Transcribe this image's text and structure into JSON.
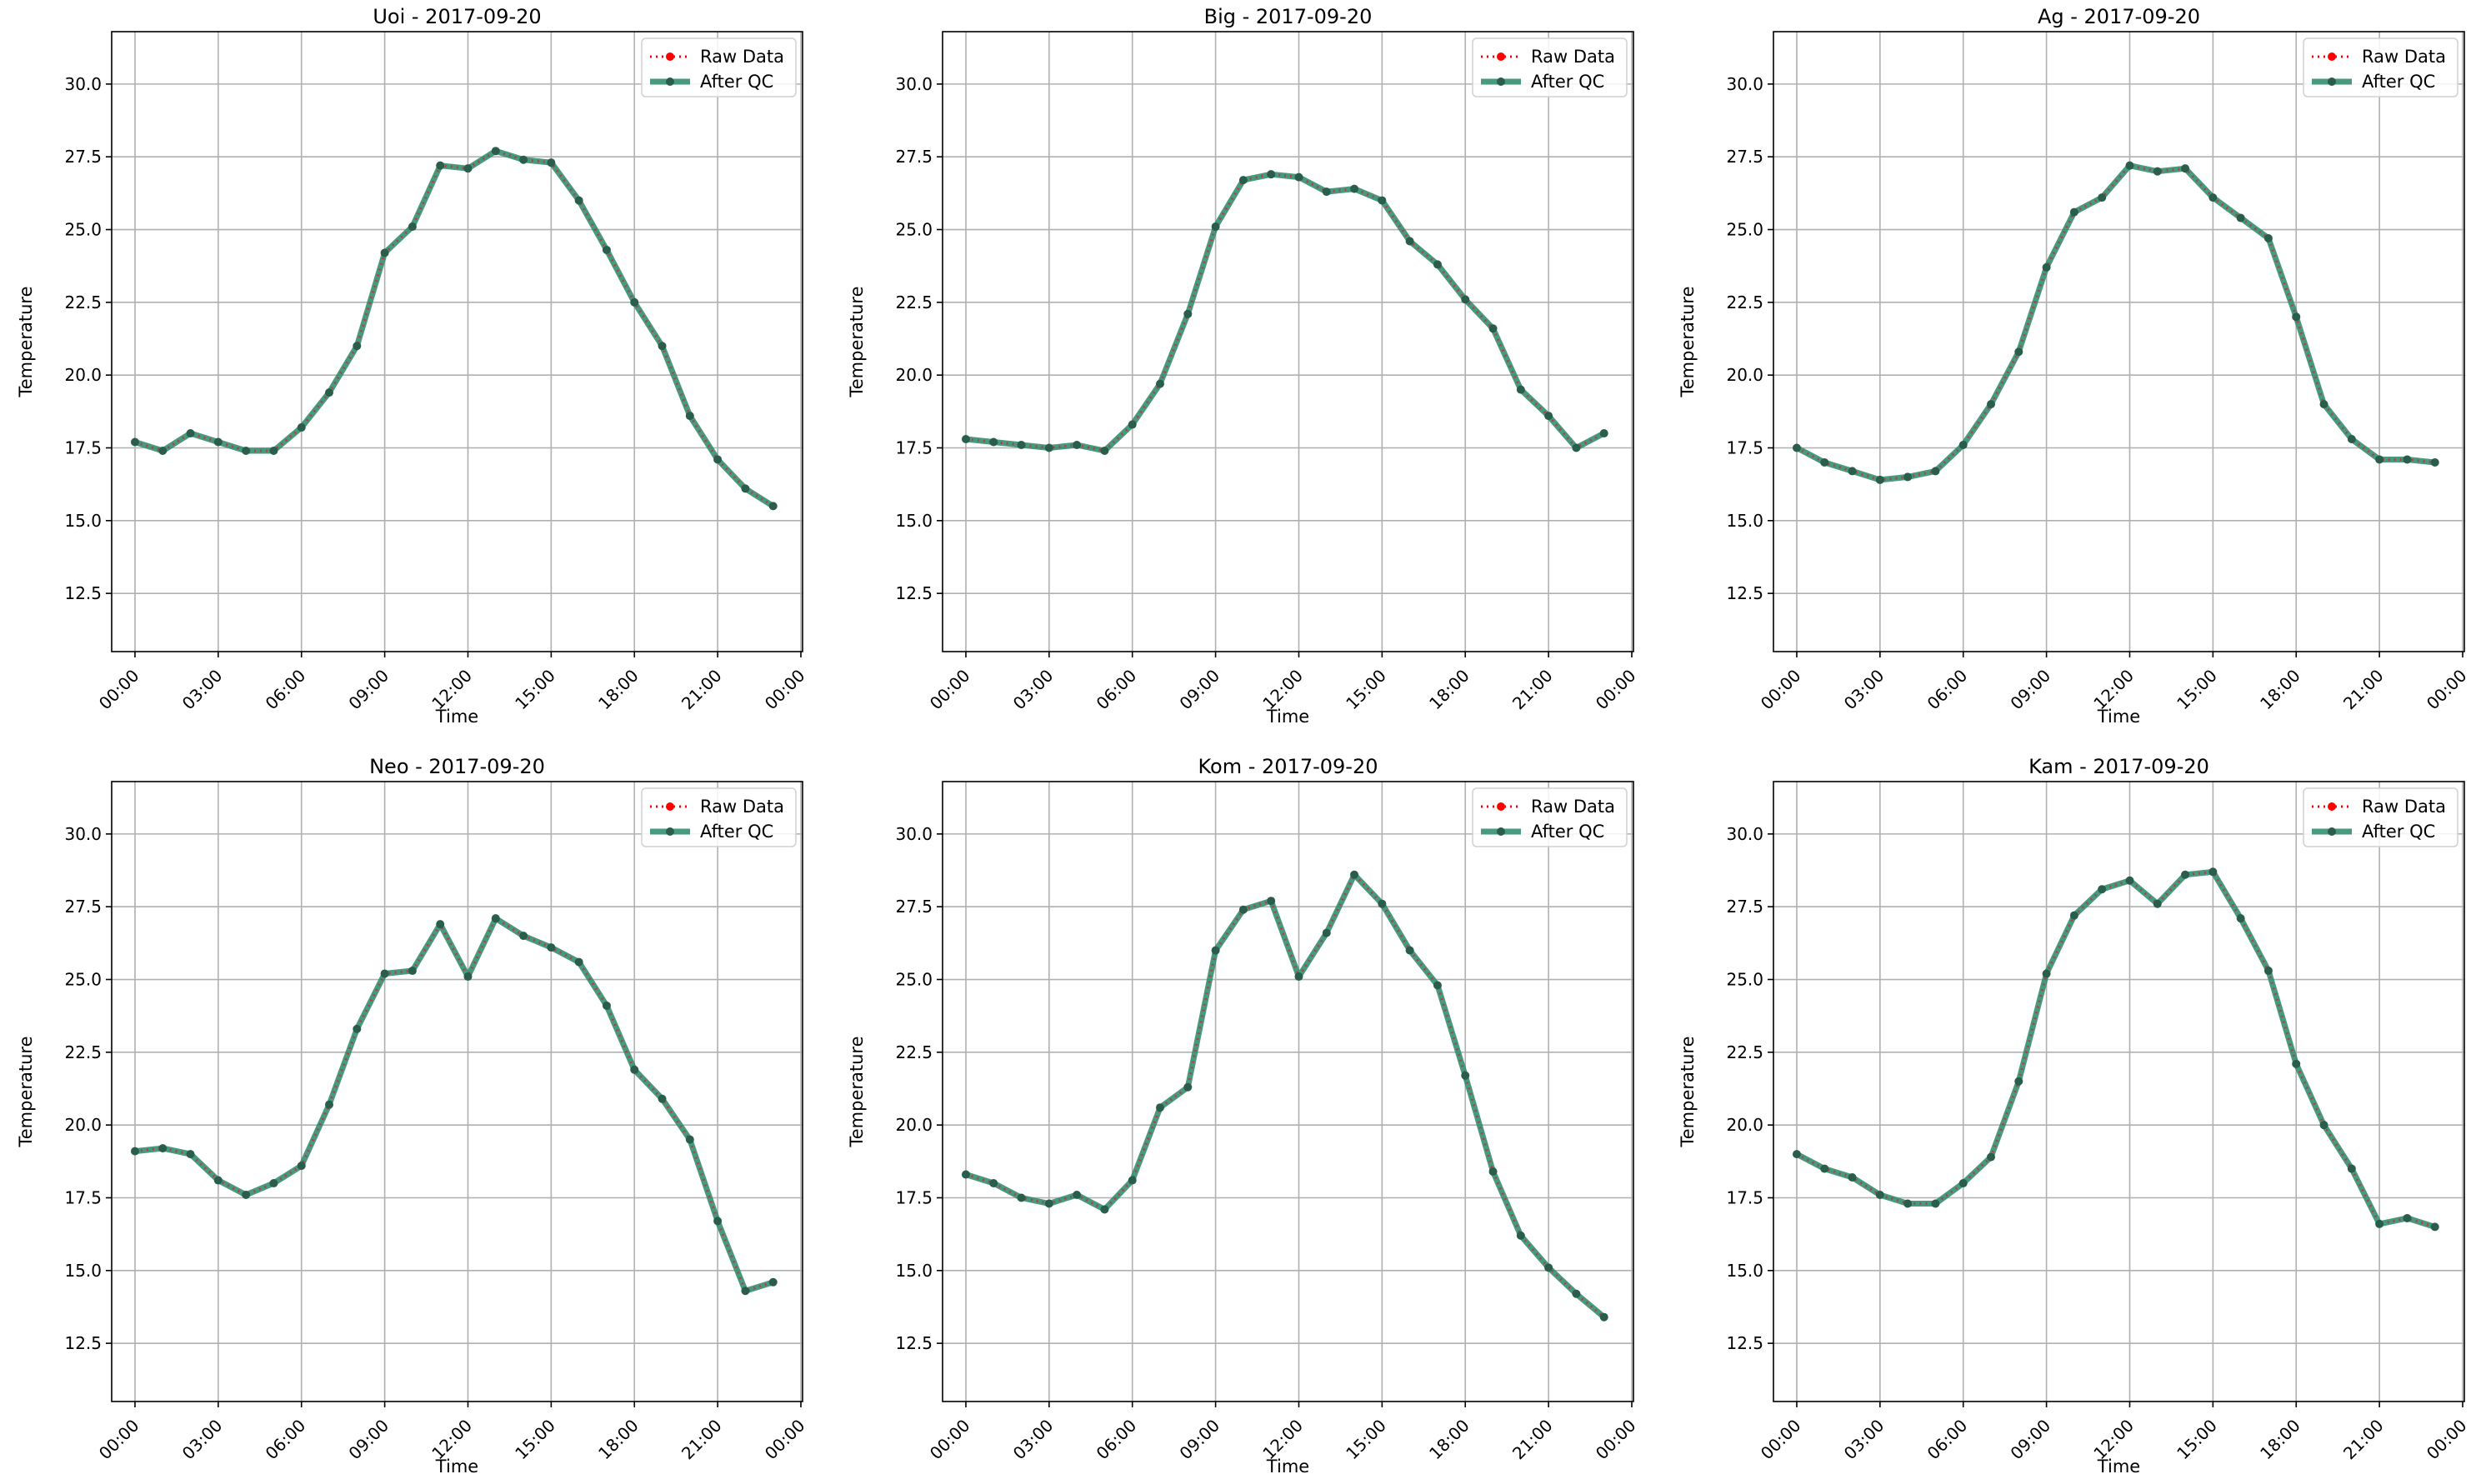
{
  "chart_data": [
    {
      "type": "line",
      "title": "Uoi - 2017-09-20",
      "xlabel": "Time",
      "ylabel": "Temperature",
      "ylim": [
        10.5,
        31.8
      ],
      "yticks": [
        "12.5",
        "15.0",
        "17.5",
        "20.0",
        "22.5",
        "25.0",
        "27.5",
        "30.0"
      ],
      "xticks": [
        "00:00",
        "03:00",
        "06:00",
        "09:00",
        "12:00",
        "15:00",
        "18:00",
        "21:00",
        "00:00"
      ],
      "grid": true,
      "legend_position": "top-right",
      "x": [
        "00:00",
        "01:00",
        "02:00",
        "03:00",
        "04:00",
        "05:00",
        "06:00",
        "07:00",
        "08:00",
        "09:00",
        "10:00",
        "11:00",
        "12:00",
        "13:00",
        "14:00",
        "15:00",
        "16:00",
        "17:00",
        "18:00",
        "19:00",
        "20:00",
        "21:00",
        "22:00",
        "23:00"
      ],
      "series": [
        {
          "name": "Raw Data",
          "color": "#ff0000",
          "values": [
            17.7,
            17.4,
            18.0,
            17.7,
            17.4,
            17.4,
            18.2,
            19.4,
            21.0,
            24.2,
            25.1,
            27.2,
            27.1,
            27.7,
            27.4,
            27.3,
            26.0,
            24.3,
            22.5,
            21.0,
            18.6,
            17.1,
            16.1,
            15.5
          ]
        },
        {
          "name": "After QC",
          "color": "#2e8b6e",
          "values": [
            17.7,
            17.4,
            18.0,
            17.7,
            17.4,
            17.4,
            18.2,
            19.4,
            21.0,
            24.2,
            25.1,
            27.2,
            27.1,
            27.7,
            27.4,
            27.3,
            26.0,
            24.3,
            22.5,
            21.0,
            18.6,
            17.1,
            16.1,
            15.5
          ]
        }
      ]
    },
    {
      "type": "line",
      "title": "Big - 2017-09-20",
      "xlabel": "Time",
      "ylabel": "Temperature",
      "ylim": [
        10.5,
        31.8
      ],
      "yticks": [
        "12.5",
        "15.0",
        "17.5",
        "20.0",
        "22.5",
        "25.0",
        "27.5",
        "30.0"
      ],
      "xticks": [
        "00:00",
        "03:00",
        "06:00",
        "09:00",
        "12:00",
        "15:00",
        "18:00",
        "21:00",
        "00:00"
      ],
      "grid": true,
      "legend_position": "top-right",
      "x": [
        "00:00",
        "01:00",
        "02:00",
        "03:00",
        "04:00",
        "05:00",
        "06:00",
        "07:00",
        "08:00",
        "09:00",
        "10:00",
        "11:00",
        "12:00",
        "13:00",
        "14:00",
        "15:00",
        "16:00",
        "17:00",
        "18:00",
        "19:00",
        "20:00",
        "21:00",
        "22:00",
        "23:00"
      ],
      "series": [
        {
          "name": "Raw Data",
          "color": "#ff0000",
          "values": [
            17.8,
            17.7,
            17.6,
            17.5,
            17.6,
            17.4,
            18.3,
            19.7,
            22.1,
            25.1,
            26.7,
            26.9,
            26.8,
            26.3,
            26.4,
            26.0,
            24.6,
            23.8,
            22.6,
            21.6,
            19.5,
            18.6,
            17.5,
            18.0
          ]
        },
        {
          "name": "After QC",
          "color": "#2e8b6e",
          "values": [
            17.8,
            17.7,
            17.6,
            17.5,
            17.6,
            17.4,
            18.3,
            19.7,
            22.1,
            25.1,
            26.7,
            26.9,
            26.8,
            26.3,
            26.4,
            26.0,
            24.6,
            23.8,
            22.6,
            21.6,
            19.5,
            18.6,
            17.5,
            18.0
          ]
        }
      ]
    },
    {
      "type": "line",
      "title": "Ag - 2017-09-20",
      "xlabel": "Time",
      "ylabel": "Temperature",
      "ylim": [
        10.5,
        31.8
      ],
      "yticks": [
        "12.5",
        "15.0",
        "17.5",
        "20.0",
        "22.5",
        "25.0",
        "27.5",
        "30.0"
      ],
      "xticks": [
        "00:00",
        "03:00",
        "06:00",
        "09:00",
        "12:00",
        "15:00",
        "18:00",
        "21:00",
        "00:00"
      ],
      "grid": true,
      "legend_position": "top-right",
      "x": [
        "00:00",
        "01:00",
        "02:00",
        "03:00",
        "04:00",
        "05:00",
        "06:00",
        "07:00",
        "08:00",
        "09:00",
        "10:00",
        "11:00",
        "12:00",
        "13:00",
        "14:00",
        "15:00",
        "16:00",
        "17:00",
        "18:00",
        "19:00",
        "20:00",
        "21:00",
        "22:00",
        "23:00"
      ],
      "series": [
        {
          "name": "Raw Data",
          "color": "#ff0000",
          "values": [
            17.5,
            17.0,
            16.7,
            16.4,
            16.5,
            16.7,
            17.6,
            19.0,
            20.8,
            23.7,
            25.6,
            26.1,
            27.2,
            27.0,
            27.1,
            26.1,
            25.4,
            24.7,
            22.0,
            19.0,
            17.8,
            17.1,
            17.1,
            17.0
          ]
        },
        {
          "name": "After QC",
          "color": "#2e8b6e",
          "values": [
            17.5,
            17.0,
            16.7,
            16.4,
            16.5,
            16.7,
            17.6,
            19.0,
            20.8,
            23.7,
            25.6,
            26.1,
            27.2,
            27.0,
            27.1,
            26.1,
            25.4,
            24.7,
            22.0,
            19.0,
            17.8,
            17.1,
            17.1,
            17.0
          ]
        }
      ]
    },
    {
      "type": "line",
      "title": "Neo - 2017-09-20",
      "xlabel": "Time",
      "ylabel": "Temperature",
      "ylim": [
        10.5,
        31.8
      ],
      "yticks": [
        "12.5",
        "15.0",
        "17.5",
        "20.0",
        "22.5",
        "25.0",
        "27.5",
        "30.0"
      ],
      "xticks": [
        "00:00",
        "03:00",
        "06:00",
        "09:00",
        "12:00",
        "15:00",
        "18:00",
        "21:00",
        "00:00"
      ],
      "grid": true,
      "legend_position": "top-right",
      "x": [
        "00:00",
        "01:00",
        "02:00",
        "03:00",
        "04:00",
        "05:00",
        "06:00",
        "07:00",
        "08:00",
        "09:00",
        "10:00",
        "11:00",
        "12:00",
        "13:00",
        "14:00",
        "15:00",
        "16:00",
        "17:00",
        "18:00",
        "19:00",
        "20:00",
        "21:00",
        "22:00",
        "23:00"
      ],
      "series": [
        {
          "name": "Raw Data",
          "color": "#ff0000",
          "values": [
            19.1,
            19.2,
            19.0,
            18.1,
            17.6,
            18.0,
            18.6,
            20.7,
            23.3,
            25.2,
            25.3,
            26.9,
            25.1,
            27.1,
            26.5,
            26.1,
            25.6,
            24.1,
            21.9,
            20.9,
            19.5,
            16.7,
            14.3,
            14.6
          ]
        },
        {
          "name": "After QC",
          "color": "#2e8b6e",
          "values": [
            19.1,
            19.2,
            19.0,
            18.1,
            17.6,
            18.0,
            18.6,
            20.7,
            23.3,
            25.2,
            25.3,
            26.9,
            25.1,
            27.1,
            26.5,
            26.1,
            25.6,
            24.1,
            21.9,
            20.9,
            19.5,
            16.7,
            14.3,
            14.6
          ]
        }
      ]
    },
    {
      "type": "line",
      "title": "Kom - 2017-09-20",
      "xlabel": "Time",
      "ylabel": "Temperature",
      "ylim": [
        10.5,
        31.8
      ],
      "yticks": [
        "12.5",
        "15.0",
        "17.5",
        "20.0",
        "22.5",
        "25.0",
        "27.5",
        "30.0"
      ],
      "xticks": [
        "00:00",
        "03:00",
        "06:00",
        "09:00",
        "12:00",
        "15:00",
        "18:00",
        "21:00",
        "00:00"
      ],
      "grid": true,
      "legend_position": "top-right",
      "x": [
        "00:00",
        "01:00",
        "02:00",
        "03:00",
        "04:00",
        "05:00",
        "06:00",
        "07:00",
        "08:00",
        "09:00",
        "10:00",
        "11:00",
        "12:00",
        "13:00",
        "14:00",
        "15:00",
        "16:00",
        "17:00",
        "18:00",
        "19:00",
        "20:00",
        "21:00",
        "22:00",
        "23:00"
      ],
      "series": [
        {
          "name": "Raw Data",
          "color": "#ff0000",
          "values": [
            18.3,
            18.0,
            17.5,
            17.3,
            17.6,
            17.1,
            18.1,
            20.6,
            21.3,
            26.0,
            27.4,
            27.7,
            25.1,
            26.6,
            28.6,
            27.6,
            26.0,
            24.8,
            21.7,
            18.4,
            16.2,
            15.1,
            14.2,
            13.4
          ]
        },
        {
          "name": "After QC",
          "color": "#2e8b6e",
          "values": [
            18.3,
            18.0,
            17.5,
            17.3,
            17.6,
            17.1,
            18.1,
            20.6,
            21.3,
            26.0,
            27.4,
            27.7,
            25.1,
            26.6,
            28.6,
            27.6,
            26.0,
            24.8,
            21.7,
            18.4,
            16.2,
            15.1,
            14.2,
            13.4
          ]
        }
      ]
    },
    {
      "type": "line",
      "title": "Kam - 2017-09-20",
      "xlabel": "Time",
      "ylabel": "Temperature",
      "ylim": [
        10.5,
        31.8
      ],
      "yticks": [
        "12.5",
        "15.0",
        "17.5",
        "20.0",
        "22.5",
        "25.0",
        "27.5",
        "30.0"
      ],
      "xticks": [
        "00:00",
        "03:00",
        "06:00",
        "09:00",
        "12:00",
        "15:00",
        "18:00",
        "21:00",
        "00:00"
      ],
      "grid": true,
      "legend_position": "top-right",
      "x": [
        "00:00",
        "01:00",
        "02:00",
        "03:00",
        "04:00",
        "05:00",
        "06:00",
        "07:00",
        "08:00",
        "09:00",
        "10:00",
        "11:00",
        "12:00",
        "13:00",
        "14:00",
        "15:00",
        "16:00",
        "17:00",
        "18:00",
        "19:00",
        "20:00",
        "21:00",
        "22:00",
        "23:00"
      ],
      "series": [
        {
          "name": "Raw Data",
          "color": "#ff0000",
          "values": [
            19.0,
            18.5,
            18.2,
            17.6,
            17.3,
            17.3,
            18.0,
            18.9,
            21.5,
            25.2,
            27.2,
            28.1,
            28.4,
            27.6,
            28.6,
            28.7,
            27.1,
            25.3,
            22.1,
            20.0,
            18.5,
            16.6,
            16.8,
            16.5
          ]
        },
        {
          "name": "After QC",
          "color": "#2e8b6e",
          "values": [
            19.0,
            18.5,
            18.2,
            17.6,
            17.3,
            17.3,
            18.0,
            18.9,
            21.5,
            25.2,
            27.2,
            28.1,
            28.4,
            27.6,
            28.6,
            28.7,
            27.1,
            25.3,
            22.1,
            20.0,
            18.5,
            16.6,
            16.8,
            16.5
          ]
        }
      ]
    }
  ]
}
